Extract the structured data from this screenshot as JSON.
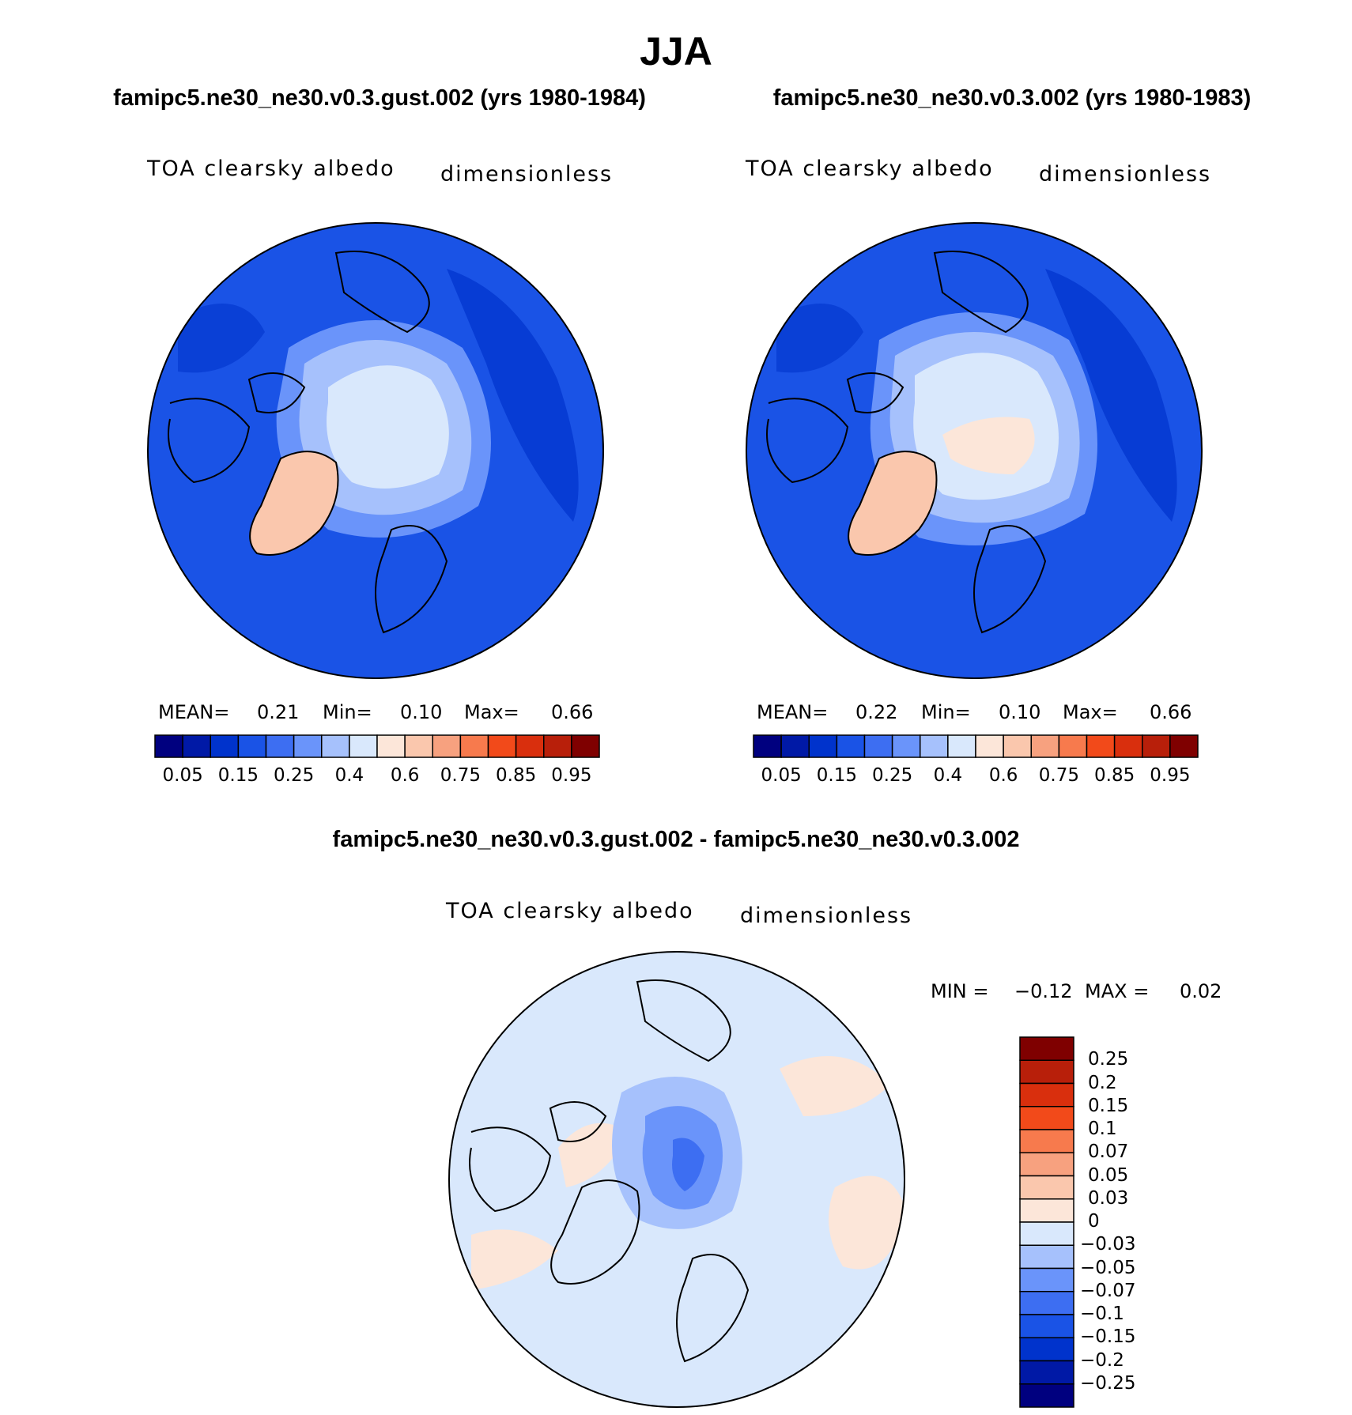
{
  "title": "JJA",
  "colors": {
    "colorbar_abs": [
      "#00007f",
      "#0019a6",
      "#0033cc",
      "#1a53e6",
      "#3d6ef2",
      "#6a94fa",
      "#a6c1fc",
      "#d9e8fc",
      "#fce6d9",
      "#fac7ad",
      "#f7a17f",
      "#f77a4d",
      "#f24a1a",
      "#d92f0d",
      "#b81f0a",
      "#7f0000"
    ],
    "colorbar_diff": [
      "#00007f",
      "#0019a6",
      "#0033cc",
      "#1a53e6",
      "#3d6ef2",
      "#6a94fa",
      "#a6c1fc",
      "#d9e8fc",
      "#fce6d9",
      "#fac7ad",
      "#f7a17f",
      "#f77a4d",
      "#f24a1a",
      "#d92f0d",
      "#b81f0a",
      "#7f0000"
    ],
    "map_ocean": "#1a53e6",
    "map_ocean_deep": "#0033cc",
    "map_greenland": "#fac7ad",
    "map_ice_light": "#d9e8fc",
    "map_ice_mid": "#a6c1fc",
    "diff_background": "#d9e8fc",
    "diff_positive": "#fce6d9"
  },
  "panels": {
    "left": {
      "case_title": "famipc5.ne30_ne30.v0.3.gust.002 (yrs 1980-1984)",
      "variable": "TOA clearsky albedo",
      "units": "dimensionless",
      "mean_label": "MEAN=",
      "mean_value": "0.21",
      "min_label": "Min=",
      "min_value": "0.10",
      "max_label": "Max=",
      "max_value": "0.66",
      "ticks": [
        "0.05",
        "0.15",
        "0.25",
        "0.4",
        "0.6",
        "0.75",
        "0.85",
        "0.95"
      ]
    },
    "right": {
      "case_title": "famipc5.ne30_ne30.v0.3.002 (yrs 1980-1983)",
      "variable": "TOA clearsky albedo",
      "units": "dimensionless",
      "mean_label": "MEAN=",
      "mean_value": "0.22",
      "min_label": "Min=",
      "min_value": "0.10",
      "max_label": "Max=",
      "max_value": "0.66",
      "ticks": [
        "0.05",
        "0.15",
        "0.25",
        "0.4",
        "0.6",
        "0.75",
        "0.85",
        "0.95"
      ]
    },
    "diff": {
      "case_title": "famipc5.ne30_ne30.v0.3.gust.002 - famipc5.ne30_ne30.v0.3.002",
      "variable": "TOA clearsky albedo",
      "units": "dimensionless",
      "min_label": "MIN =",
      "min_value": "−0.12",
      "max_label": "MAX =",
      "max_value": "0.02",
      "ticks": [
        "0.25",
        "0.2",
        "0.15",
        "0.1",
        "0.07",
        "0.05",
        "0.03",
        "0",
        "−0.03",
        "−0.05",
        "−0.07",
        "−0.1",
        "−0.15",
        "−0.2",
        "−0.25"
      ]
    }
  }
}
